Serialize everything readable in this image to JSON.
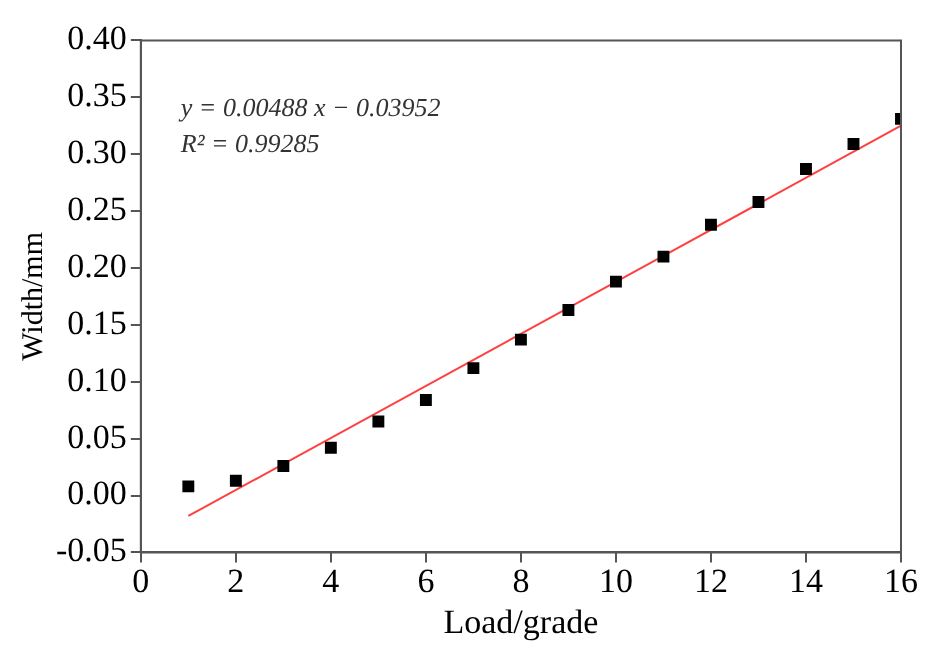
{
  "chart_data": {
    "type": "scatter",
    "xlabel": "Load/grade",
    "ylabel": "Width/mm",
    "annotations": [
      "y = 0.00488 x − 0.03952",
      "R² = 0.99285"
    ],
    "series": [
      {
        "type": "scatter",
        "color": "#000000",
        "marker": "square",
        "x": [
          1,
          2,
          3,
          4,
          5,
          6,
          7,
          8,
          9,
          10,
          11,
          12,
          13,
          14,
          15,
          16
        ],
        "values": [
          0.008,
          0.013,
          0.026,
          0.042,
          0.065,
          0.084,
          0.112,
          0.137,
          0.163,
          0.188,
          0.21,
          0.238,
          0.258,
          0.287,
          0.309,
          0.331
        ]
      },
      {
        "type": "line",
        "color": "#ff4040",
        "marker": "none",
        "x": [
          1,
          16
        ],
        "values": [
          -0.018,
          0.325
        ]
      }
    ],
    "xlim": [
      0,
      16
    ],
    "xticks": [
      0,
      2,
      4,
      6,
      8,
      10,
      12,
      14,
      16
    ],
    "ylim": [
      -0.05,
      0.4
    ],
    "yticks": [
      {
        "value": -0.05,
        "label": "-0.05"
      },
      {
        "value": 0,
        "label": "0.00"
      },
      {
        "value": 0.05,
        "label": "0.05"
      },
      {
        "value": 0.1,
        "label": "0.10"
      },
      {
        "value": 0.15,
        "label": "0.15"
      },
      {
        "value": 0.2,
        "label": "0.20"
      },
      {
        "value": 0.25,
        "label": "0.25"
      },
      {
        "value": 0.3,
        "label": "0.30"
      },
      {
        "value": 0.35,
        "label": "0.35"
      },
      {
        "value": 0.4,
        "label": "0.40"
      }
    ],
    "grid": false,
    "legend": false
  }
}
